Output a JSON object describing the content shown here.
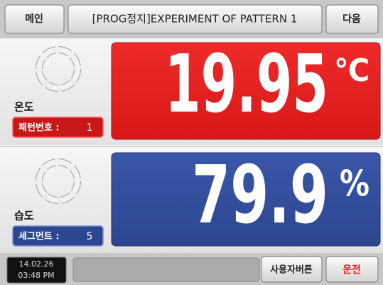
{
  "header": {
    "left_button": "메인",
    "title": "[PROG정지]EXPERIMENT OF PATTERN 1",
    "right_button": "다음"
  },
  "temperature": {
    "label": "온도",
    "badge_label": "패턴번호 :",
    "badge_value": "1",
    "value": "19.95",
    "unit": "℃"
  },
  "humidity": {
    "label": "습도",
    "badge_label": "세그먼트 :",
    "badge_value": "5",
    "value": "79.9",
    "unit": "%"
  },
  "footer": {
    "date": "14.02.26",
    "time": "03:48 PM",
    "user_button": "사용자버튼",
    "run_button": "운전"
  }
}
